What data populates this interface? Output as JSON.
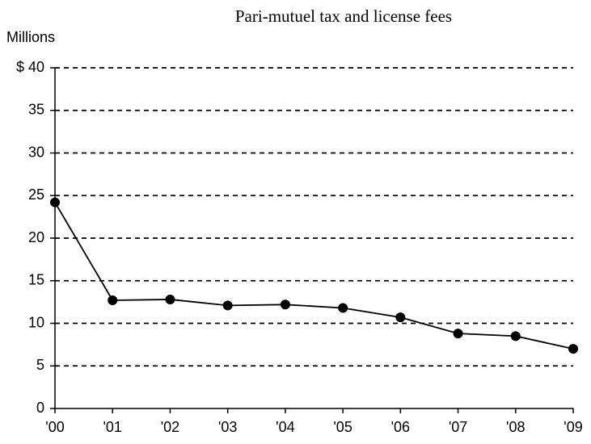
{
  "chart_data": {
    "type": "line",
    "title": "Pari-mutuel tax and license fees",
    "y_label": "Millions",
    "categories": [
      "'00",
      "'01",
      "'02",
      "'03",
      "'04",
      "'05",
      "'06",
      "'07",
      "'08",
      "'09"
    ],
    "values": [
      24.2,
      12.7,
      12.8,
      12.1,
      12.2,
      11.8,
      10.7,
      8.8,
      8.5,
      7.0
    ],
    "color": "#000000",
    "ylim": [
      0,
      40
    ],
    "yticks": [
      0,
      5,
      10,
      15,
      20,
      25,
      30,
      35,
      {
        "value": 40,
        "label": "$ 40"
      }
    ],
    "grid": true
  }
}
